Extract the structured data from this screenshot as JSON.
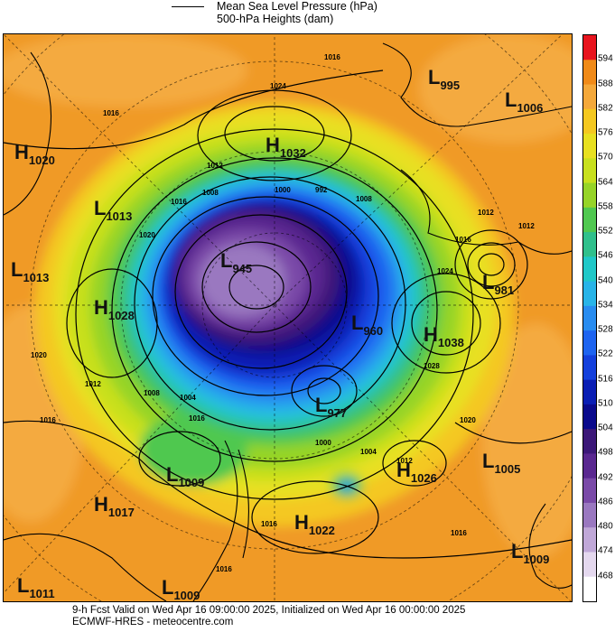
{
  "legend": {
    "mslp_label": "Mean Sea Level Pressure (hPa)",
    "heights_label": "500-hPa Heights (dam)"
  },
  "colorbar": {
    "levels": [
      "594",
      "588",
      "582",
      "576",
      "570",
      "564",
      "558",
      "552",
      "546",
      "540",
      "534",
      "528",
      "522",
      "516",
      "510",
      "504",
      "498",
      "492",
      "486",
      "480",
      "474",
      "468"
    ],
    "colors": [
      "#e8141e",
      "#f08a18",
      "#f4a83a",
      "#f4c820",
      "#e8e020",
      "#c8e01e",
      "#96d428",
      "#50c850",
      "#30c08c",
      "#20c8c8",
      "#28b4e8",
      "#288cf0",
      "#1e64f0",
      "#1440dc",
      "#0a1eb4",
      "#0a0a8c",
      "#3c1878",
      "#5a2890",
      "#7a4aa8",
      "#9a78c0",
      "#c0a8d8",
      "#e4d8ee",
      "#ffffff"
    ]
  },
  "centers": [
    {
      "type": "L",
      "value": "995"
    },
    {
      "type": "L",
      "value": "1006"
    },
    {
      "type": "H",
      "value": "1020"
    },
    {
      "type": "H",
      "value": "1032"
    },
    {
      "type": "L",
      "value": "1013"
    },
    {
      "type": "L",
      "value": "1013"
    },
    {
      "type": "L",
      "value": "945"
    },
    {
      "type": "H",
      "value": "1028"
    },
    {
      "type": "L",
      "value": "960"
    },
    {
      "type": "H",
      "value": "1038"
    },
    {
      "type": "L",
      "value": "981"
    },
    {
      "type": "L",
      "value": "977"
    },
    {
      "type": "L",
      "value": "1009"
    },
    {
      "type": "H",
      "value": "1026"
    },
    {
      "type": "L",
      "value": "1005"
    },
    {
      "type": "H",
      "value": "1017"
    },
    {
      "type": "H",
      "value": "1022"
    },
    {
      "type": "L",
      "value": "1009"
    },
    {
      "type": "L",
      "value": "1011"
    },
    {
      "type": "L",
      "value": "1009"
    }
  ],
  "isobar_labels": [
    "1016",
    "1024",
    "1016",
    "1012",
    "1016",
    "1008",
    "1000",
    "992",
    "1008",
    "1020",
    "1016",
    "1024",
    "1012",
    "1028",
    "1020",
    "1012",
    "1008",
    "1004",
    "1016",
    "1000",
    "1004",
    "1012",
    "1020",
    "1016",
    "1016",
    "1016",
    "1016",
    "1012"
  ],
  "footer": {
    "line1": "9-h Fcst Valid on Wed Apr 16 09:00:00 2025, Initialized on Wed Apr 16 00:00:00 2025",
    "line2": "ECMWF-HRES  - meteocentre.com"
  }
}
